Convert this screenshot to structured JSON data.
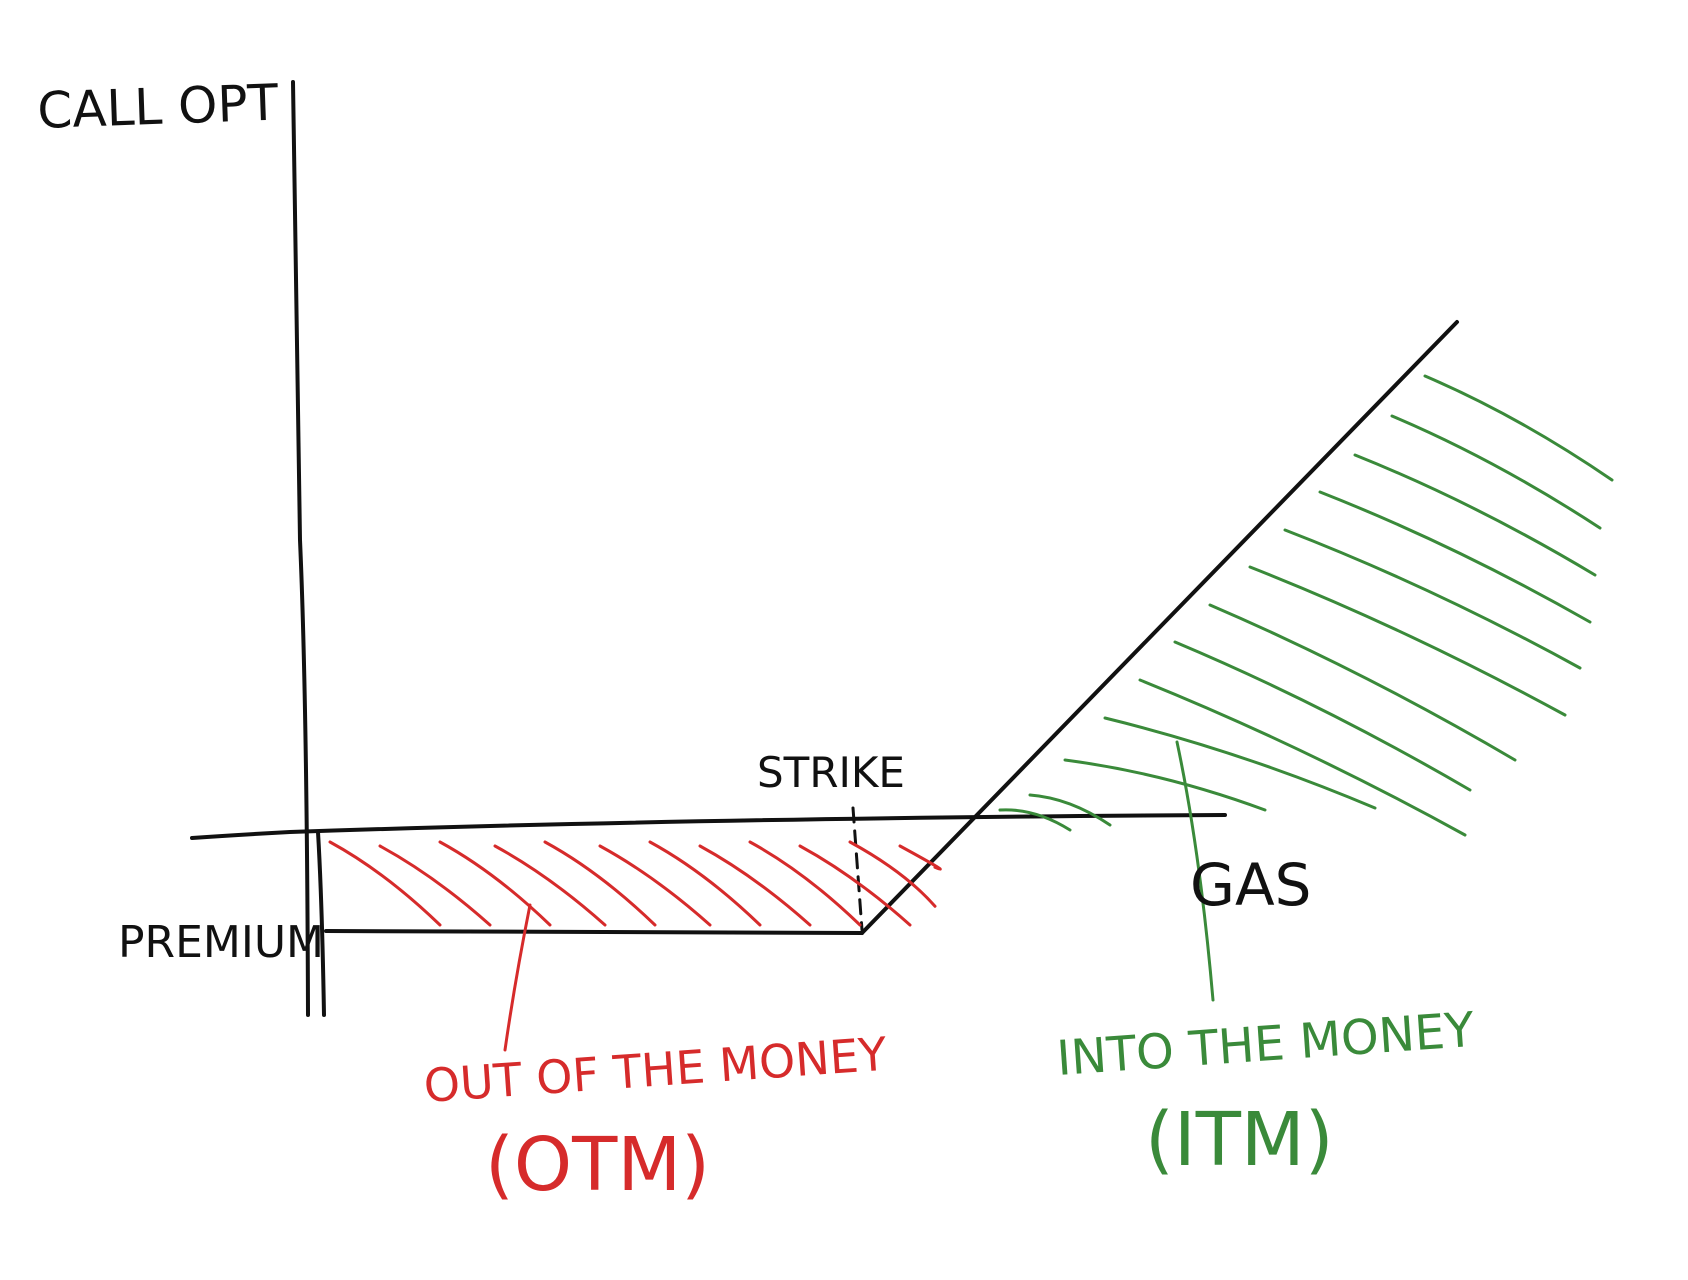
{
  "labels": {
    "y_axis": "CALL OPT",
    "x_axis": "GAS",
    "strike": "STRIKE",
    "premium": "PREMIUM",
    "otm_line1": "OUT OF THE MONEY",
    "otm_line2": "(OTM)",
    "itm_line1": "INTO THE MONEY",
    "itm_line2": "(ITM)"
  },
  "colors": {
    "ink": "#111111",
    "otm": "#d62b2b",
    "itm": "#3a8a3a"
  }
}
